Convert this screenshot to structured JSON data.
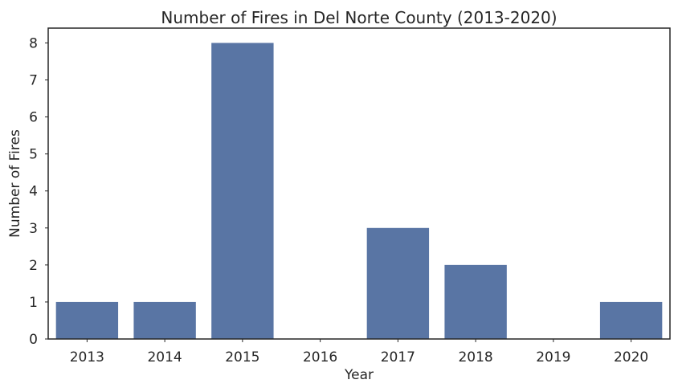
{
  "chart_data": {
    "type": "bar",
    "title": "Number of Fires in Del Norte County (2013-2020)",
    "xlabel": "Year",
    "ylabel": "Number of Fires",
    "categories": [
      "2013",
      "2014",
      "2015",
      "2016",
      "2017",
      "2018",
      "2019",
      "2020"
    ],
    "values": [
      1,
      1,
      8,
      0,
      3,
      2,
      0,
      1
    ],
    "ylim": [
      0,
      8.4
    ],
    "yticks": [
      0,
      1,
      2,
      3,
      4,
      5,
      6,
      7,
      8
    ],
    "grid": false,
    "legend": "none",
    "bar_color": "#5975a4",
    "axis_color": "#262626"
  }
}
